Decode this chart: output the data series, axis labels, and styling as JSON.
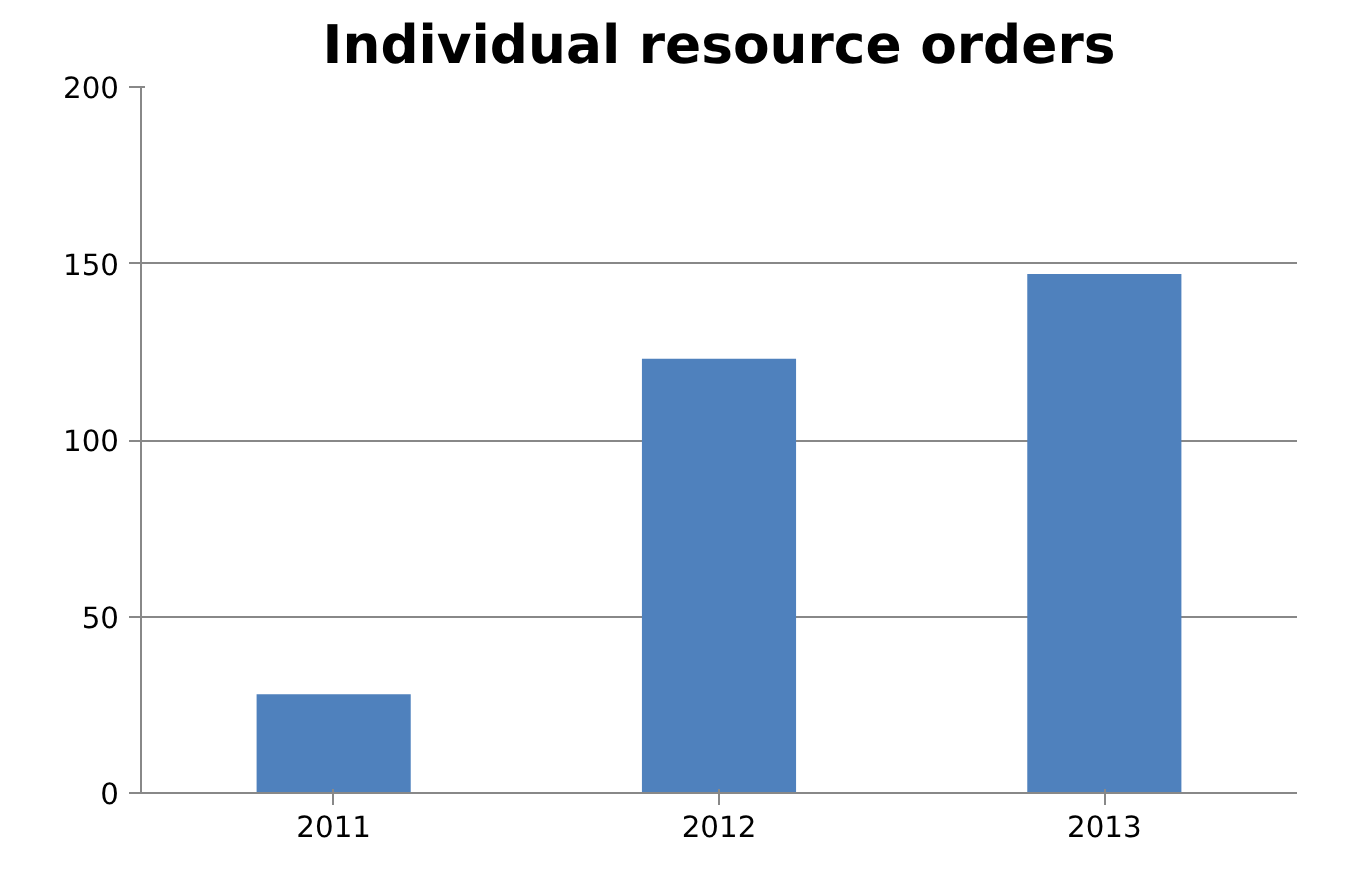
{
  "chart_data": {
    "type": "bar",
    "title": "Individual resource orders",
    "categories": [
      "2011",
      "2012",
      "2013"
    ],
    "values": [
      28,
      123,
      147
    ],
    "color": "#4f81bd",
    "ylim": [
      0,
      200
    ],
    "yticks": [
      0,
      50,
      100,
      150,
      200
    ],
    "grid": "y"
  }
}
